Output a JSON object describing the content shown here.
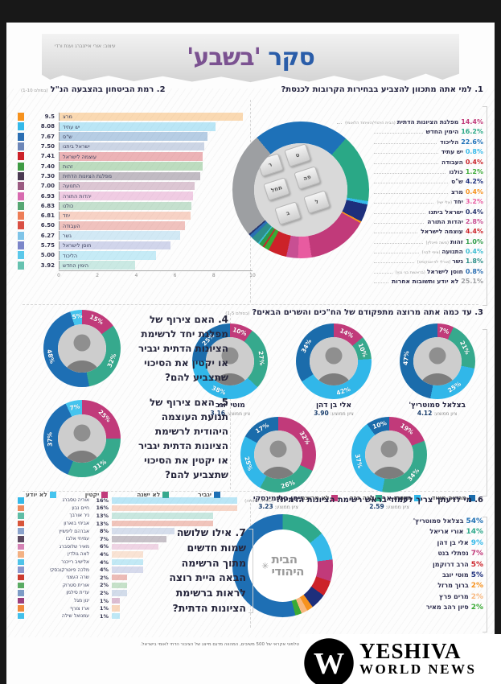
{
  "header": {
    "credit": "עיצוב: אורי אייזנברג וענת ורדי",
    "title1": "סקר",
    "title2": "'בשבע'"
  },
  "ballot_keys": [
    "ר",
    "ט",
    "מחל",
    "פה",
    "ב",
    "ל"
  ],
  "chart_data": [
    {
      "id": "q1",
      "type": "pie",
      "title": "1. למי אתה מתכוון להצביע בבחירות הקרובות לכנסת?",
      "start_deg": -40,
      "donut_order": [
        2,
        1,
        3,
        6,
        7,
        0,
        8,
        10,
        11,
        5,
        4,
        12,
        13,
        14,
        15,
        9,
        16
      ],
      "items": [
        {
          "pct": "14.4%",
          "value": 14.4,
          "label": "מפלגת הציונות הדתית",
          "note": "(הבית היהודי/האיחוד הלאומי)",
          "color": "#c13a7a"
        },
        {
          "pct": "16.2%",
          "value": 16.2,
          "label": "הימין החדש",
          "note": "",
          "color": "#2aa886"
        },
        {
          "pct": "22.6%",
          "value": 22.6,
          "label": "הליכוד",
          "note": "",
          "color": "#1e71b8"
        },
        {
          "pct": "0.8%",
          "value": 0.8,
          "label": "יש עתיד",
          "note": "",
          "color": "#35b9e9"
        },
        {
          "pct": "0.4%",
          "value": 0.4,
          "label": "העבודה",
          "note": "",
          "color": "#c9252b"
        },
        {
          "pct": "1.2%",
          "value": 1.2,
          "label": "כולנו",
          "note": "",
          "color": "#3aaa35"
        },
        {
          "pct": "4.2%",
          "value": 4.2,
          "label": "ש\"ס",
          "note": "",
          "color": "#1d2f7c"
        },
        {
          "pct": "0.4%",
          "value": 0.4,
          "label": "מרצ",
          "note": "",
          "color": "#f6921e"
        },
        {
          "pct": "3.2%",
          "value": 3.2,
          "label": "יחד",
          "note": "(אלי ישי)",
          "color": "#e85ba0"
        },
        {
          "pct": "0.4%",
          "value": 0.4,
          "label": "ישראל ביתנו",
          "note": "",
          "color": "#27356f"
        },
        {
          "pct": "2.8%",
          "value": 2.8,
          "label": "יהדות התורה",
          "note": "",
          "color": "#c84f93"
        },
        {
          "pct": "4.4%",
          "value": 4.4,
          "label": "עוצמה לישראל",
          "note": "",
          "color": "#cc2229"
        },
        {
          "pct": "1.0%",
          "value": 1.0,
          "label": "זהות",
          "note": "(משה פייגלין)",
          "color": "#2e9b47"
        },
        {
          "pct": "0.4%",
          "value": 0.4,
          "label": "התנועה",
          "note": "(ציפי לבני)",
          "color": "#3bbcd1"
        },
        {
          "pct": "1.8%",
          "value": 1.8,
          "label": "גשר",
          "note": "(אורלי לוי-אבקסיס)",
          "color": "#2e8f8a"
        },
        {
          "pct": "0.8%",
          "value": 0.8,
          "label": "חוסן לישראל",
          "note": "(בראשות בני גנץ)",
          "color": "#2b6fb3"
        },
        {
          "pct": "25.1%",
          "value": 25.1,
          "label": "לא יודע ותשובות אחרות",
          "note": "",
          "color": "#9d9fa2"
        }
      ]
    },
    {
      "id": "q2",
      "type": "bar",
      "title": "2. רמת הביטחון בהצבעה הנ\"ל",
      "note": "(בסולם 1-10)",
      "xlim": [
        0,
        10
      ],
      "ticks": [
        "0",
        "2",
        "4",
        "6",
        "8",
        "10"
      ],
      "bars": [
        {
          "label": "מרצ",
          "value": 9.5,
          "display": "9.5",
          "color": "#f6921e"
        },
        {
          "label": "יש עתיד",
          "value": 8.08,
          "display": "8.08",
          "color": "#35b9e9"
        },
        {
          "label": "ש\"ס",
          "value": 7.67,
          "display": "7.67",
          "color": "#2b6fb3"
        },
        {
          "label": "ישראל ביתנו",
          "value": 7.5,
          "display": "7.50",
          "color": "#6d87b8"
        },
        {
          "label": "עוצמה לישראל",
          "value": 7.41,
          "display": "7.41",
          "color": "#cc2229"
        },
        {
          "label": "זהות",
          "value": 7.4,
          "display": "7.40",
          "color": "#3f9b44"
        },
        {
          "label": "מפלגת הציונות הדתית",
          "value": 7.3,
          "display": "7.30",
          "color": "#4b3a52"
        },
        {
          "label": "התנועה",
          "value": 7.0,
          "display": "7.00",
          "color": "#9b5b82"
        },
        {
          "label": "יהדות התורה",
          "value": 6.93,
          "display": "6.93",
          "color": "#d86bb0"
        },
        {
          "label": "כולנו",
          "value": 6.83,
          "display": "6.83",
          "color": "#57a773"
        },
        {
          "label": "יחד",
          "value": 6.81,
          "display": "6.81",
          "color": "#ed7d57"
        },
        {
          "label": "העבודה",
          "value": 6.5,
          "display": "6.50",
          "color": "#d94f43"
        },
        {
          "label": "גשר",
          "value": 6.27,
          "display": "6.27",
          "color": "#7fc4e8"
        },
        {
          "label": "חוסן לישראל",
          "value": 5.75,
          "display": "5.75",
          "color": "#7b86c9"
        },
        {
          "label": "הליכוד",
          "value": 5.0,
          "display": "5.00",
          "color": "#5bc8ea"
        },
        {
          "label": "הימין החדש",
          "value": 3.92,
          "display": "3.92",
          "color": "#66c2b0"
        }
      ]
    },
    {
      "id": "q3",
      "type": "pie",
      "title": "3. עד כמה אתה מרוצה מתפקודם של הח\"כים והשרים הבאים?",
      "note": "(בסולם 1-5)",
      "score_prefix": "ציון ממוצע:",
      "row1": [
        {
          "name": "בצלאל סמוטריץ'",
          "score": "4.12",
          "segments": [
            {
              "value": 7,
              "label": "7%",
              "color": "#c13a7a"
            },
            {
              "value": 21,
              "label": "21%",
              "color": "#36a98d"
            },
            {
              "value": 25,
              "label": "25%",
              "color": "#31b7e9"
            },
            {
              "value": 47,
              "label": "47%",
              "color": "#1b6cab"
            }
          ]
        },
        {
          "name": "אלי בן דהן",
          "score": "3.90",
          "segments": [
            {
              "value": 14,
              "label": "14%",
              "color": "#c13a7a"
            },
            {
              "value": 10,
              "label": "10%",
              "color": "#36a98d"
            },
            {
              "value": 42,
              "label": "42%",
              "color": "#31b7e9"
            },
            {
              "value": 34,
              "label": "34%",
              "color": "#1b6cab"
            }
          ]
        },
        {
          "name": "מוטי יוגב",
          "score": "3.16",
          "segments": [
            {
              "value": 10,
              "label": "10%",
              "color": "#c13a7a"
            },
            {
              "value": 27,
              "label": "27%",
              "color": "#36a98d"
            },
            {
              "value": 38,
              "label": "38%",
              "color": "#31b7e9"
            },
            {
              "value": 25,
              "label": "25%",
              "color": "#1b6cab"
            }
          ]
        }
      ],
      "row2": [
        {
          "name": "אורי אריאל",
          "score": "2.59",
          "segments": [
            {
              "value": 19,
              "label": "19%",
              "color": "#c13a7a"
            },
            {
              "value": 34,
              "label": "34%",
              "color": "#36a98d"
            },
            {
              "value": 37,
              "label": "37%",
              "color": "#31b7e9"
            },
            {
              "value": 10,
              "label": "10%",
              "color": "#1b6cab"
            }
          ]
        },
        {
          "name": "ניסן סלומינסקי",
          "score": "3.23",
          "segments": [
            {
              "value": 32,
              "label": "32%",
              "color": "#c13a7a"
            },
            {
              "value": 26,
              "label": "26%",
              "color": "#36a98d"
            },
            {
              "value": 25,
              "label": "25%",
              "color": "#31b7e9"
            },
            {
              "value": 17,
              "label": "17%",
              "color": "#1b6cab"
            }
          ]
        }
      ],
      "legend": [
        {
          "label": "מרוצה מאוד",
          "color": "#1b6cab"
        },
        {
          "label": "מרוצה",
          "color": "#31b7e9"
        },
        {
          "label": "ככה ככה",
          "color": "#36a98d"
        },
        {
          "label": "לא מרוצה",
          "color": "#c13a7a"
        }
      ]
    },
    {
      "id": "q45",
      "type": "pie",
      "questions": [
        {
          "text": "4. האם צירוף של\nמפלגת יחד לרשימת\nהציונות הדתית יגביר\nאו יקטין את הסיכוי\nשתצביע להם?",
          "segments": [
            {
              "value": 15,
              "label": "15%",
              "color": "#c13a7a"
            },
            {
              "value": 32,
              "label": "32%",
              "color": "#36a98d"
            },
            {
              "value": 48,
              "label": "48%",
              "color": "#1e6fb4"
            },
            {
              "value": 5,
              "label": "5%",
              "color": "#45c4ee"
            }
          ]
        },
        {
          "text": "5. האם צירוף של\nתנועת העוצמה\nהיהודית לרשימת\nהציונות הדתית יגביר\nאו יקטין את הסיכוי\nשתצביע להם?",
          "segments": [
            {
              "value": 25,
              "label": "25%",
              "color": "#c13a7a"
            },
            {
              "value": 31,
              "label": "31%",
              "color": "#36a98d"
            },
            {
              "value": 37,
              "label": "37%",
              "color": "#1e6fb4"
            },
            {
              "value": 7,
              "label": "7%",
              "color": "#45c4ee"
            }
          ]
        }
      ],
      "legend": [
        {
          "label": "יגביר",
          "color": "#1e6fb4"
        },
        {
          "label": "לא ישנה",
          "color": "#36a98d"
        },
        {
          "label": "יקטין",
          "color": "#c13a7a"
        },
        {
          "label": "לא יודע",
          "color": "#45c4ee"
        }
      ]
    },
    {
      "id": "q6",
      "type": "pie",
      "title": "6. מי לדעתך צריך לעמוד בראש רשימת הציונות הדתית?",
      "note": "(שאלה פתוחה)",
      "center_logo_line1": "הבית",
      "center_logo_line2": "היהודי",
      "donut_order": [
        1,
        2,
        3,
        4,
        5,
        6,
        7,
        8,
        0
      ],
      "items": [
        {
          "pct": "54%",
          "value": 54,
          "label": "בצלאל סמוטריץ'",
          "color": "#1e6fb4"
        },
        {
          "pct": "14%",
          "value": 14,
          "label": "אורי אריאל",
          "color": "#2fa98c"
        },
        {
          "pct": "9%",
          "value": 9,
          "label": "אלי בן דהן",
          "color": "#35b9e9"
        },
        {
          "pct": "7%",
          "value": 7,
          "label": "נפתלי בנט",
          "color": "#c13a7a"
        },
        {
          "pct": "5%",
          "value": 5,
          "label": "הרב דרוקמן",
          "color": "#cc2229"
        },
        {
          "pct": "5%",
          "value": 5,
          "label": "מוטי יוגב",
          "color": "#1d2f7c"
        },
        {
          "pct": "2%",
          "value": 2,
          "label": "ברוך מרזל",
          "color": "#f6921e"
        },
        {
          "pct": "2%",
          "value": 2,
          "label": "מרים פרץ",
          "color": "#f7b77e"
        },
        {
          "pct": "2%",
          "value": 2,
          "label": "סיון רהב מאיר",
          "color": "#3aaa35"
        }
      ]
    },
    {
      "id": "q7",
      "type": "bar",
      "question": "7. אילו שלושה\nשמות חדשים\nמתוך הרשימה\nהבאה היית רוצה\nלראות ברשימת\nהציונות הדתית?",
      "xmax": 18,
      "bars": [
        {
          "label": "אוריה טסברג",
          "pct": "16%",
          "value": 16,
          "color": "#35b9e9"
        },
        {
          "label": "חיים נבון",
          "pct": "16%",
          "value": 16,
          "color": "#ed8a5f"
        },
        {
          "label": "ניר אורבך",
          "pct": "13%",
          "value": 13,
          "color": "#5fbda5"
        },
        {
          "label": "אביחי בוארון",
          "pct": "13%",
          "value": 13,
          "color": "#d8553a"
        },
        {
          "label": "אברהם ליפשיץ",
          "pct": "8%",
          "value": 8,
          "color": "#8ba3cc"
        },
        {
          "label": "עמיחי אלבז",
          "pct": "7%",
          "value": 7,
          "color": "#5d4a60"
        },
        {
          "label": "מאיר שלוסברג",
          "pct": "6%",
          "value": 6,
          "color": "#d583b5"
        },
        {
          "label": "לאה גולדין",
          "pct": "4%",
          "value": 4,
          "color": "#f3b183"
        },
        {
          "label": "אלישיב רייכנר",
          "pct": "4%",
          "value": 4,
          "color": "#4fc3e8"
        },
        {
          "label": "מלכה פיוטרקובסקי",
          "pct": "4%",
          "value": 4,
          "color": "#8a96cc"
        },
        {
          "label": "שרה העצני",
          "pct": "2%",
          "value": 2,
          "color": "#cc3b2e"
        },
        {
          "label": "אורית סטרוק",
          "pct": "2%",
          "value": 2,
          "color": "#5aab63"
        },
        {
          "label": "עדית סילמן",
          "pct": "2%",
          "value": 2,
          "color": "#7d9cc6"
        },
        {
          "label": "ינון מגל",
          "pct": "1%",
          "value": 1,
          "color": "#9c3f7d"
        },
        {
          "label": "ארז צורף",
          "pct": "1%",
          "value": 1,
          "color": "#f08a3c"
        },
        {
          "label": "עמנואל שילה",
          "pct": "1%",
          "value": 1,
          "color": "#43c0ea"
        }
      ]
    }
  ],
  "footer": {
    "note": "* הסקר נערך בשיטת ריאיון טלפוני אקראי של 500 משיבים, המהווה מדגם מייצג של הציבור הדתי לאומי בישראל.",
    "brand_line1": "YESHIVA",
    "brand_line2": "WORLD NEWS"
  }
}
